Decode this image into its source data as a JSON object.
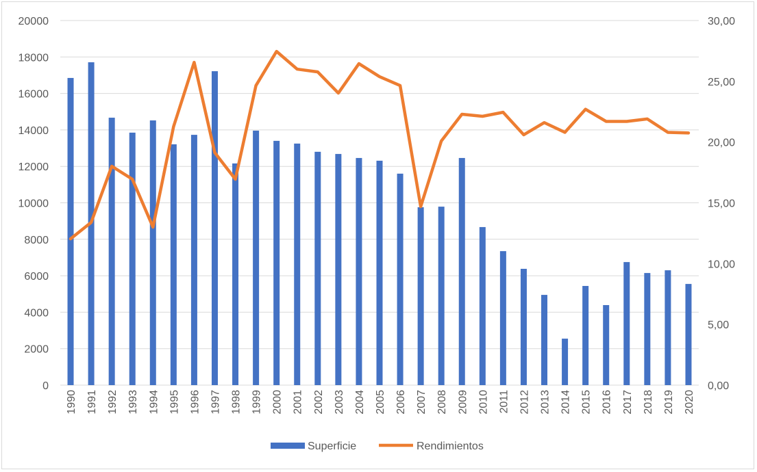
{
  "chart_data": {
    "type": "bar+line",
    "title": "",
    "categories": [
      "1990",
      "1991",
      "1992",
      "1993",
      "1994",
      "1995",
      "1996",
      "1997",
      "1998",
      "1999",
      "2000",
      "2001",
      "2002",
      "2003",
      "2004",
      "2005",
      "2006",
      "2007",
      "2008",
      "2009",
      "2010",
      "2011",
      "2012",
      "2013",
      "2014",
      "2015",
      "2016",
      "2017",
      "2018",
      "2019",
      "2020"
    ],
    "series": [
      {
        "name": "Superficie",
        "type": "bar",
        "axis": "left",
        "color": "#4472C4",
        "values": [
          16850,
          17710,
          14670,
          13850,
          14520,
          13210,
          13730,
          17220,
          12160,
          13960,
          13400,
          13250,
          12800,
          12680,
          12460,
          12310,
          11600,
          9760,
          9790,
          12460,
          8670,
          7350,
          6380,
          4950,
          2550,
          5440,
          4390,
          6750,
          6150,
          6300,
          5550
        ]
      },
      {
        "name": "Rendimientos",
        "type": "line",
        "axis": "right",
        "color": "#ED7D31",
        "values": [
          12.04,
          13.39,
          18.01,
          16.94,
          13.0,
          21.27,
          26.56,
          19.13,
          16.94,
          24.65,
          27.46,
          26.0,
          25.77,
          24.03,
          26.45,
          25.38,
          24.65,
          14.69,
          20.09,
          22.29,
          22.12,
          22.45,
          20.6,
          21.6,
          20.8,
          22.7,
          21.7,
          21.7,
          21.9,
          20.8,
          20.75
        ]
      }
    ],
    "y_left": {
      "range": [
        0,
        20000
      ],
      "ticks": [
        "0",
        "2000",
        "4000",
        "6000",
        "8000",
        "10000",
        "12000",
        "14000",
        "16000",
        "18000",
        "20000"
      ]
    },
    "y_right": {
      "range": [
        0,
        30
      ],
      "ticks": [
        "0,00",
        "5,00",
        "10,00",
        "15,00",
        "20,00",
        "25,00",
        "30,00"
      ]
    },
    "grid": true,
    "legend": "bottom"
  }
}
